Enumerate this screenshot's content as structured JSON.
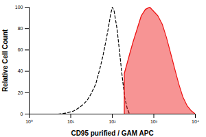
{
  "chart_data": {
    "type": "line",
    "log": "x",
    "grid": false,
    "xlabel": "CD95 purified / GAM APC",
    "ylabel": "Relative Cell Count",
    "xlim": [
      1,
      10000
    ],
    "xticks": [
      {
        "value": 1,
        "label": "10⁰"
      },
      {
        "value": 10,
        "label": "10¹"
      },
      {
        "value": 100,
        "label": "10²"
      },
      {
        "value": 1000,
        "label": "10³"
      },
      {
        "value": 10000,
        "label": "10⁴"
      }
    ],
    "ylim": [
      0,
      100
    ],
    "yticks": [
      0,
      20,
      40,
      60,
      80,
      100
    ],
    "series": [
      {
        "type": "line",
        "color": "#000000",
        "line_style": "dashed",
        "x": [
          5,
          8,
          12,
          16,
          20,
          25,
          30,
          40,
          50,
          60,
          70,
          80,
          90,
          100,
          110,
          130,
          150,
          170,
          200,
          230,
          260
        ],
        "values": [
          0,
          1,
          3,
          6,
          9,
          13,
          18,
          28,
          42,
          55,
          68,
          80,
          92,
          100,
          97,
          80,
          58,
          38,
          15,
          5,
          0
        ]
      },
      {
        "type": "area",
        "color": "#ee1111",
        "line_style": "solid",
        "x": [
          195,
          195,
          230,
          270,
          320,
          400,
          500,
          630,
          800,
          1000,
          1250,
          1600,
          2000,
          2500,
          3200,
          4000,
          5000,
          6300,
          8000,
          10000
        ],
        "values": [
          0,
          38,
          48,
          58,
          68,
          80,
          92,
          98,
          100,
          96,
          92,
          84,
          72,
          58,
          42,
          28,
          16,
          8,
          3,
          0
        ]
      }
    ]
  }
}
